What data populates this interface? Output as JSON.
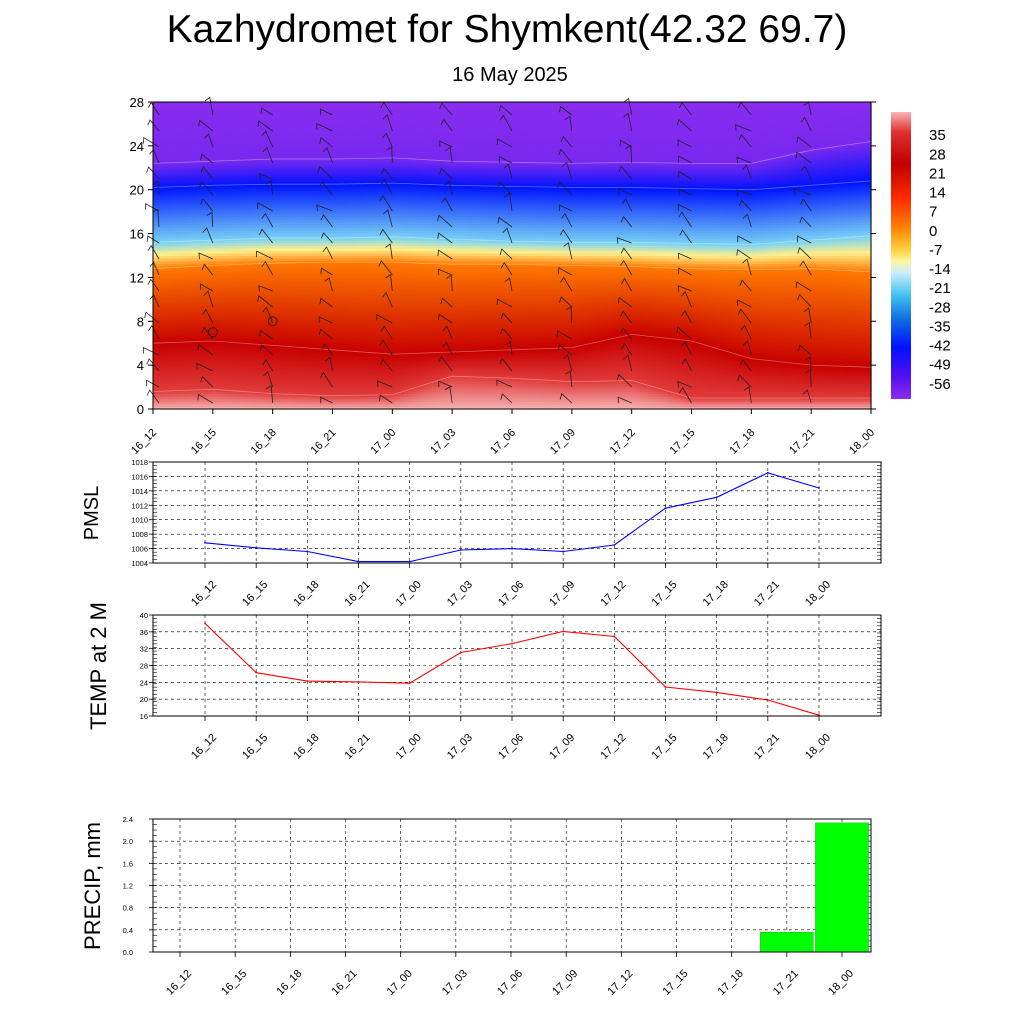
{
  "title": "Kazhydromet for Shymkent(42.32 69.7)",
  "subtitle": "16 May 2025",
  "chart_data": [
    {
      "type": "heatmap",
      "name": "temperature-altitude-cross-section",
      "xlabel": "",
      "ylabel": "",
      "x_ticks": [
        "16_12",
        "16_15",
        "16_18",
        "16_21",
        "17_00",
        "17_03",
        "17_06",
        "17_09",
        "17_12",
        "17_15",
        "17_18",
        "17_21",
        "18_00"
      ],
      "y_ticks": [
        0,
        4,
        8,
        12,
        16,
        20,
        24,
        28
      ],
      "ylim": [
        0,
        28
      ],
      "colorbar_ticks": [
        35,
        28,
        21,
        14,
        7,
        0,
        -7,
        -14,
        -21,
        -28,
        -35,
        -42,
        -49,
        -56
      ],
      "colorbar_range": [
        -63,
        42
      ],
      "contour_levels": [
        {
          "level": 2,
          "values": [
            1.6,
            1.8,
            1.4,
            1.2,
            1.3,
            3.0,
            2.8,
            2.5,
            2.6,
            1.0,
            1.0,
            1.0,
            1.0
          ]
        },
        {
          "level": 6,
          "values": [
            6.0,
            6.2,
            5.8,
            5.4,
            5.0,
            5.2,
            5.4,
            5.6,
            6.8,
            6.2,
            4.6,
            4.0,
            3.8
          ]
        },
        {
          "level": 12.6,
          "values": [
            12.8,
            13.1,
            13.3,
            13.4,
            13.4,
            13.2,
            13.2,
            13.1,
            13.0,
            12.8,
            12.7,
            12.8,
            12.5
          ]
        },
        {
          "level": 15.5,
          "values": [
            15.2,
            15.4,
            15.6,
            15.6,
            15.7,
            15.5,
            15.3,
            15.2,
            15.2,
            15.1,
            15.0,
            15.4,
            15.8
          ]
        },
        {
          "level": 19.5,
          "values": [
            20.2,
            20.4,
            20.5,
            20.5,
            20.6,
            20.4,
            20.3,
            20.2,
            20.2,
            20.1,
            20.0,
            20.4,
            20.8
          ]
        },
        {
          "level": 24,
          "values": [
            22.4,
            22.6,
            22.8,
            22.8,
            22.9,
            22.6,
            22.5,
            22.4,
            22.5,
            22.4,
            22.4,
            23.6,
            24.4
          ]
        }
      ],
      "annotations": [
        {
          "kind": "calm-marker",
          "x": "16_15",
          "y": 7
        },
        {
          "kind": "calm-marker",
          "x": "16_18",
          "y": 8
        }
      ],
      "wind_barbs": "present at each time step and level"
    },
    {
      "type": "line",
      "name": "pmsl",
      "ylabel": "PMSL",
      "categories": [
        "16_12",
        "16_15",
        "16_18",
        "16_21",
        "17_00",
        "17_03",
        "17_06",
        "17_09",
        "17_12",
        "17_15",
        "17_18",
        "17_21",
        "18_00"
      ],
      "series": [
        {
          "values": [
            1006.8,
            1006.1,
            1005.6,
            1004.2,
            1004.2,
            1005.8,
            1006.0,
            1005.6,
            1006.5,
            1011.6,
            1013.1,
            1016.5,
            1014.4
          ],
          "color": "#0000ff"
        }
      ],
      "ylim": [
        1004,
        1018
      ],
      "y_ticks": [
        1004,
        1006,
        1008,
        1010,
        1012,
        1014,
        1016,
        1018
      ],
      "grid": "dashed"
    },
    {
      "type": "line",
      "name": "temp-2m",
      "ylabel": "TEMP at 2 M",
      "categories": [
        "16_12",
        "16_15",
        "16_18",
        "16_21",
        "17_00",
        "17_03",
        "17_06",
        "17_09",
        "17_12",
        "17_15",
        "17_18",
        "17_21",
        "18_00"
      ],
      "series": [
        {
          "values": [
            38.0,
            26.3,
            24.3,
            24.1,
            23.8,
            31.1,
            33.2,
            36.1,
            34.9,
            22.9,
            21.6,
            19.8,
            16.2
          ],
          "color": "#ff0000"
        }
      ],
      "ylim": [
        16,
        40
      ],
      "y_ticks": [
        16,
        20,
        24,
        28,
        32,
        36,
        40
      ],
      "grid": "dashed"
    },
    {
      "type": "bar",
      "name": "precipitation",
      "ylabel": "PRECIP, mm",
      "categories": [
        "16_12",
        "16_15",
        "16_18",
        "16_21",
        "17_00",
        "17_03",
        "17_06",
        "17_09",
        "17_12",
        "17_15",
        "17_18",
        "17_21",
        "18_00"
      ],
      "values": [
        0,
        0,
        0,
        0,
        0,
        0,
        0,
        0,
        0,
        0,
        0,
        0.36,
        2.33
      ],
      "color": "#00ff00",
      "ylim": [
        0,
        2.4
      ],
      "y_ticks": [
        "0.0",
        "0.4",
        "0.8",
        "1.2",
        "1.6",
        "2.0",
        "2.4"
      ],
      "grid": "dashed"
    }
  ]
}
